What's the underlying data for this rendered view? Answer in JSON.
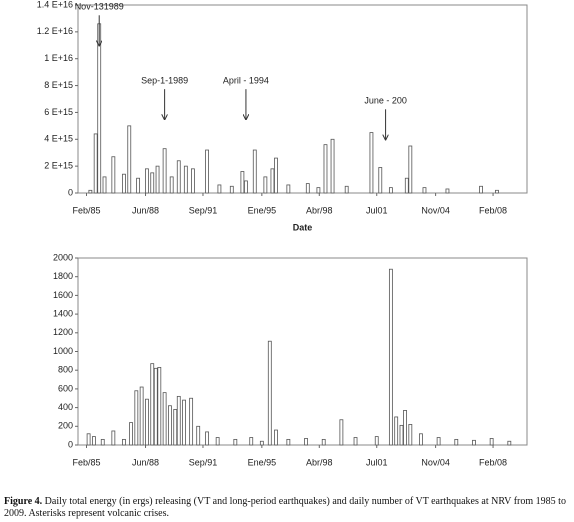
{
  "chart_data": [
    {
      "type": "bar",
      "x_label": "Date",
      "x": [
        1985.3,
        1985.6,
        1985.8,
        1986.1,
        1986.6,
        1987.2,
        1987.5,
        1988.0,
        1988.5,
        1988.8,
        1989.1,
        1989.5,
        1989.9,
        1990.3,
        1990.7,
        1991.1,
        1991.9,
        1992.6,
        1993.3,
        1993.9,
        1994.1,
        1994.6,
        1995.2,
        1995.6,
        1995.8,
        1996.5,
        1997.6,
        1998.2,
        1998.6,
        1999.0,
        1999.8,
        2001.2,
        2001.7,
        2002.3,
        2003.2,
        2003.4,
        2004.2,
        2005.5,
        2007.4,
        2008.3
      ],
      "values": [
        200000000000000.0,
        4400000000000000.0,
        1.26e+16,
        1200000000000000.0,
        2700000000000000.0,
        1400000000000000.0,
        5000000000000000.0,
        1100000000000000.0,
        1800000000000000.0,
        1500000000000000.0,
        2000000000000000.0,
        3300000000000000.0,
        1200000000000000.0,
        2400000000000000.0,
        2000000000000000.0,
        1800000000000000.0,
        3200000000000000.0,
        600000000000000.0,
        500000000000000.0,
        1600000000000000.0,
        900000000000000.0,
        3200000000000000.0,
        1200000000000000.0,
        1800000000000000.0,
        2600000000000000.0,
        600000000000000.0,
        700000000000000.0,
        400000000000000.0,
        3600000000000000.0,
        4000000000000000.0,
        500000000000000.0,
        4500000000000000.0,
        1900000000000000.0,
        400000000000000.0,
        1100000000000000.0,
        3500000000000000.0,
        400000000000000.0,
        300000000000000.0,
        500000000000000.0,
        200000000000000.0
      ],
      "color": "#555555",
      "xlim": [
        1984.6,
        2010
      ],
      "xticks": [
        {
          "value": 1985.08,
          "label": "Feb/85"
        },
        {
          "value": 1988.42,
          "label": "Jun/88"
        },
        {
          "value": 1991.67,
          "label": "Sep/91"
        },
        {
          "value": 1995.0,
          "label": "Ene/95"
        },
        {
          "value": 1998.25,
          "label": "Abr/98"
        },
        {
          "value": 2001.5,
          "label": "Jul01"
        },
        {
          "value": 2004.83,
          "label": "Nov/04"
        },
        {
          "value": 2008.08,
          "label": "Feb/08"
        }
      ],
      "ylim": [
        0,
        1.4e+16
      ],
      "yticks": [
        0,
        {
          "value": 2000000000000000.0,
          "label": "2 E+15"
        },
        {
          "value": 4000000000000000.0,
          "label": "4 E+15"
        },
        {
          "value": 6000000000000000.0,
          "label": "6 E+15"
        },
        {
          "value": 8000000000000000.0,
          "label": "8 E+15"
        },
        {
          "value": 1e+16,
          "label": "1 E+16"
        },
        {
          "value": 1.2e+16,
          "label": "1.2 E+16"
        },
        {
          "value": 1.4e+16,
          "label": "1.4 E+16"
        }
      ],
      "annotations": [
        {
          "text": "Nov-131989",
          "x": 1985.8,
          "y": 1.1e+16
        },
        {
          "text": "Sep-1-1989",
          "x": 1989.5,
          "y": 5500000000000000.0
        },
        {
          "text": "April - 1994",
          "x": 1994.1,
          "y": 5500000000000000.0
        },
        {
          "text": "June - 200",
          "x": 2002.0,
          "y": 4000000000000000.0
        }
      ]
    },
    {
      "type": "bar",
      "x": [
        1985.2,
        1985.5,
        1986.0,
        1986.6,
        1987.2,
        1987.6,
        1987.9,
        1988.2,
        1988.5,
        1988.8,
        1989.0,
        1989.2,
        1989.5,
        1989.8,
        1990.1,
        1990.3,
        1990.6,
        1991.0,
        1991.4,
        1991.9,
        1992.5,
        1993.5,
        1994.4,
        1995.0,
        1995.45,
        1995.8,
        1996.5,
        1997.5,
        1998.5,
        1999.5,
        2000.3,
        2001.5,
        2002.3,
        2002.6,
        2002.9,
        2003.1,
        2003.4,
        2004.0,
        2005.0,
        2006.0,
        2007.0,
        2008.0,
        2009.0
      ],
      "values": [
        120,
        90,
        60,
        150,
        60,
        240,
        580,
        620,
        490,
        870,
        820,
        830,
        560,
        420,
        380,
        520,
        480,
        500,
        200,
        140,
        80,
        60,
        80,
        40,
        1110,
        160,
        60,
        70,
        60,
        270,
        80,
        90,
        1880,
        300,
        210,
        370,
        220,
        120,
        80,
        60,
        50,
        70,
        40
      ],
      "color": "#555555",
      "xlim": [
        1984.6,
        2010
      ],
      "xticks": [
        {
          "value": 1985.08,
          "label": "Feb/85"
        },
        {
          "value": 1988.42,
          "label": "Jun/88"
        },
        {
          "value": 1991.67,
          "label": "Sep/91"
        },
        {
          "value": 1995.0,
          "label": "Ene/95"
        },
        {
          "value": 1998.25,
          "label": "Abr/98"
        },
        {
          "value": 2001.5,
          "label": "Jul01"
        },
        {
          "value": 2004.83,
          "label": "Nov/04"
        },
        {
          "value": 2008.08,
          "label": "Feb/08"
        }
      ],
      "ylim": [
        0,
        2000
      ],
      "yticks": [
        0,
        200,
        400,
        600,
        800,
        1000,
        1200,
        1400,
        1600,
        1800,
        2000
      ]
    }
  ],
  "caption": {
    "label": "Figure 4.",
    "text": "Daily total energy (in ergs) releasing  (VT and long-period earthquakes)  and daily number of VT earthquakes at NRV from 1985 to 2009.  Asterisks represent volcanic crises."
  }
}
